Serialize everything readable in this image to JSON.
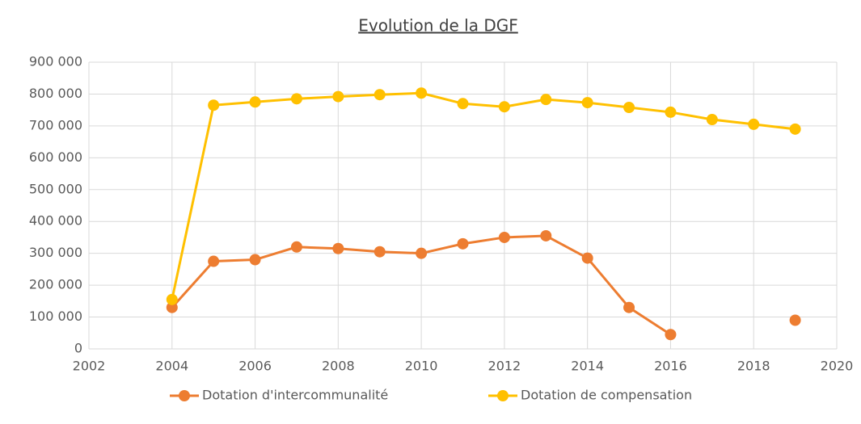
{
  "chart_data": {
    "type": "line",
    "title": "Evolution de la DGF",
    "x": [
      2004,
      2005,
      2006,
      2007,
      2008,
      2009,
      2010,
      2011,
      2012,
      2013,
      2014,
      2015,
      2016,
      2017,
      2018,
      2019
    ],
    "series": [
      {
        "name": "Dotation d'intercommunalité",
        "color": "#ed7d31",
        "values": [
          130000,
          275000,
          280000,
          320000,
          315000,
          305000,
          300000,
          330000,
          350000,
          355000,
          285000,
          130000,
          45000,
          null,
          null,
          90000
        ]
      },
      {
        "name": "Dotation de compensation",
        "color": "#ffc000",
        "values": [
          155000,
          765000,
          775000,
          785000,
          792000,
          798000,
          803000,
          770000,
          760000,
          783000,
          773000,
          758000,
          743000,
          720000,
          705000,
          690000
        ]
      }
    ],
    "xlim": [
      2002,
      2020
    ],
    "xticks": [
      2002,
      2004,
      2006,
      2008,
      2010,
      2012,
      2014,
      2016,
      2018,
      2020
    ],
    "ylim": [
      0,
      900000
    ],
    "yticks": [
      0,
      {
        "value": 100000,
        "label": "100 000"
      },
      {
        "value": 200000,
        "label": "200 000"
      },
      {
        "value": 300000,
        "label": "300 000"
      },
      {
        "value": 400000,
        "label": "400 000"
      },
      {
        "value": 500000,
        "label": "500 000"
      },
      {
        "value": 600000,
        "label": "600 000"
      },
      {
        "value": 700000,
        "label": "700 000"
      },
      {
        "value": 800000,
        "label": "800 000"
      },
      {
        "value": 900000,
        "label": "900 000"
      }
    ],
    "grid": true,
    "legend": "bottom"
  }
}
